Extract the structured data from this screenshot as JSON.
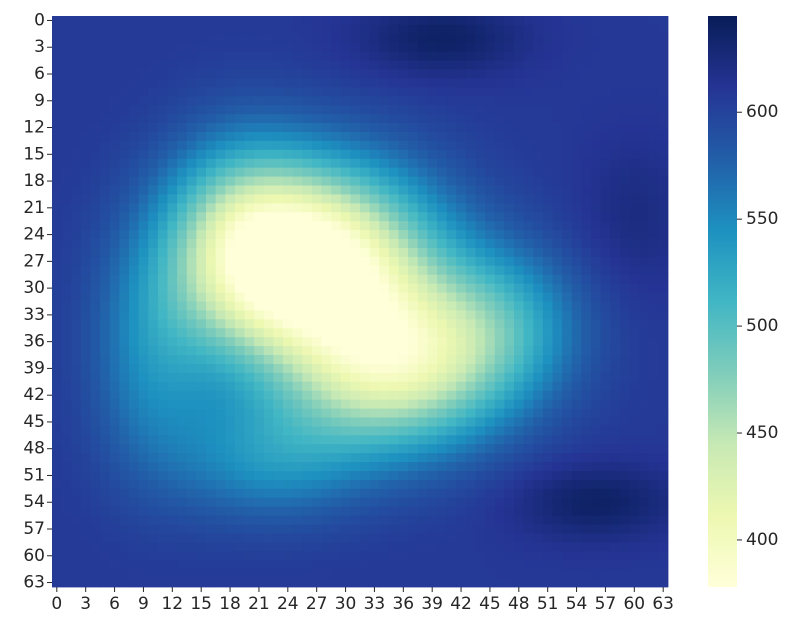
{
  "chart_data": {
    "type": "heatmap",
    "title": "",
    "xlabel": "",
    "ylabel": "",
    "grid_size": 64,
    "x_tick_labels": [
      "0",
      "3",
      "6",
      "9",
      "12",
      "15",
      "18",
      "21",
      "24",
      "27",
      "30",
      "33",
      "36",
      "39",
      "42",
      "45",
      "48",
      "51",
      "54",
      "57",
      "60",
      "63"
    ],
    "y_tick_labels": [
      "0",
      "3",
      "6",
      "9",
      "12",
      "15",
      "18",
      "21",
      "24",
      "27",
      "30",
      "33",
      "36",
      "39",
      "42",
      "45",
      "48",
      "51",
      "54",
      "57",
      "60",
      "63"
    ],
    "colormap": "YlGnBu",
    "colormap_stops": [
      "#ffffd9",
      "#edf8b1",
      "#c7e9b4",
      "#7fcdbb",
      "#41b6c4",
      "#1d91c0",
      "#225ea8",
      "#253494",
      "#081d58"
    ],
    "value_range": [
      378,
      645
    ],
    "colorbar_ticks": [
      400,
      450,
      500,
      550,
      600
    ],
    "colorbar_tick_labels": [
      "400",
      "450",
      "500",
      "550",
      "600"
    ],
    "base_value": 608,
    "features": [
      {
        "cx": 27,
        "cy": 27,
        "sx": 8.5,
        "sy": 7.5,
        "amp": -235
      },
      {
        "cx": 35,
        "cy": 39,
        "sx": 8.0,
        "sy": 6.5,
        "amp": -170
      },
      {
        "cx": 19,
        "cy": 25,
        "sx": 5.5,
        "sy": 8.0,
        "amp": -95
      },
      {
        "cx": 46,
        "cy": 34,
        "sx": 6.0,
        "sy": 6.0,
        "amp": -70
      },
      {
        "cx": 22,
        "cy": 49,
        "sx": 7.0,
        "sy": 5.0,
        "amp": -60
      },
      {
        "cx": 10,
        "cy": 38,
        "sx": 4.5,
        "sy": 9.0,
        "amp": -55
      },
      {
        "cx": 40,
        "cy": 2,
        "sx": 6.0,
        "sy": 3.0,
        "amp": 30
      },
      {
        "cx": 56,
        "cy": 54,
        "sx": 6.0,
        "sy": 3.0,
        "amp": 30
      },
      {
        "cx": 60,
        "cy": 22,
        "sx": 4.0,
        "sy": 6.0,
        "amp": 15
      }
    ]
  }
}
